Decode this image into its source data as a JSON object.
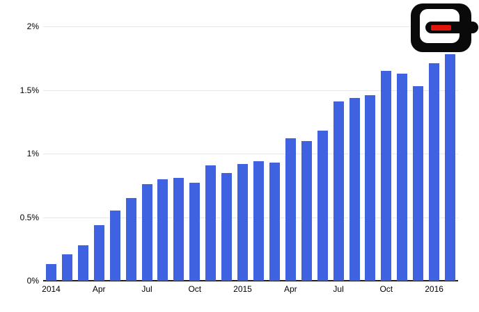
{
  "page": {
    "background": "#ffffff"
  },
  "logo": {
    "name": "Business Insider B logo",
    "body_color": "#0a0a0a",
    "dash_color": "#e01408",
    "counter_color": "#ffffff"
  },
  "chart_data": {
    "type": "bar",
    "title": "",
    "xlabel": "",
    "ylabel": "",
    "unit": "%",
    "ylim": [
      0,
      2
    ],
    "grid": true,
    "legend": "none",
    "bar_color": "#3f63e0",
    "gridline_color": "#e8e8e8",
    "axis_line_color": "#1f1f1f",
    "categories": [
      "Jan 2014",
      "Feb 2014",
      "Mar 2014",
      "Apr 2014",
      "May 2014",
      "Jun 2014",
      "Jul 2014",
      "Aug 2014",
      "Sep 2014",
      "Oct 2014",
      "Nov 2014",
      "Dec 2014",
      "Jan 2015",
      "Feb 2015",
      "Mar 2015",
      "Apr 2015",
      "May 2015",
      "Jun 2015",
      "Jul 2015",
      "Aug 2015",
      "Sep 2015",
      "Oct 2015",
      "Nov 2015",
      "Dec 2015",
      "Jan 2016",
      "Feb 2016"
    ],
    "values": [
      0.13,
      0.21,
      0.28,
      0.44,
      0.55,
      0.65,
      0.76,
      0.8,
      0.81,
      0.77,
      0.91,
      0.85,
      0.92,
      0.94,
      0.93,
      1.12,
      1.1,
      1.18,
      1.41,
      1.44,
      1.46,
      1.65,
      1.63,
      1.53,
      1.71,
      1.78
    ],
    "y_ticks": {
      "labels": [
        "0%",
        "0.5%",
        "1%",
        "1.5%",
        "2%"
      ],
      "values": [
        0,
        0.5,
        1,
        1.5,
        2
      ]
    },
    "x_ticks": [
      {
        "index": 0,
        "label": "2014"
      },
      {
        "index": 3,
        "label": "Apr"
      },
      {
        "index": 6,
        "label": "Jul"
      },
      {
        "index": 9,
        "label": "Oct"
      },
      {
        "index": 12,
        "label": "2015"
      },
      {
        "index": 15,
        "label": "Apr"
      },
      {
        "index": 18,
        "label": "Jul"
      },
      {
        "index": 21,
        "label": "Oct"
      },
      {
        "index": 24,
        "label": "2016"
      }
    ]
  }
}
